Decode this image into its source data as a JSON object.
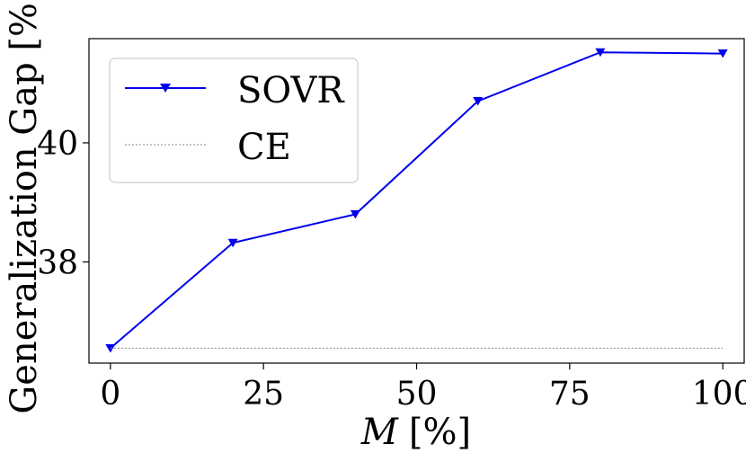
{
  "chart_data": {
    "type": "line",
    "title": "",
    "xlabel": "M [%]",
    "xlabel_symbol": "M",
    "xlabel_unit": "[%]",
    "ylabel": "Generalization Gap [%]",
    "xlim": [
      -3.5,
      103.5
    ],
    "ylim": [
      36.3,
      41.75
    ],
    "xticks": [
      0,
      25,
      50,
      75,
      100
    ],
    "xtick_labels": [
      "0",
      "25",
      "50",
      "75",
      "100"
    ],
    "yticks": [
      38,
      40
    ],
    "ytick_labels": [
      "38",
      "40"
    ],
    "grid": false,
    "legend_position": "top-left",
    "series": [
      {
        "name": "SOVR",
        "color": "#0000ee",
        "style": "solid",
        "marker": "triangle-down",
        "x": [
          0,
          20,
          40,
          60,
          80,
          100
        ],
        "y": [
          36.55,
          38.32,
          38.8,
          40.7,
          41.52,
          41.5
        ]
      },
      {
        "name": "CE",
        "color": "#888888",
        "style": "dotted",
        "marker": "none",
        "x": [
          0,
          100
        ],
        "y": [
          36.55,
          36.55
        ]
      }
    ]
  }
}
